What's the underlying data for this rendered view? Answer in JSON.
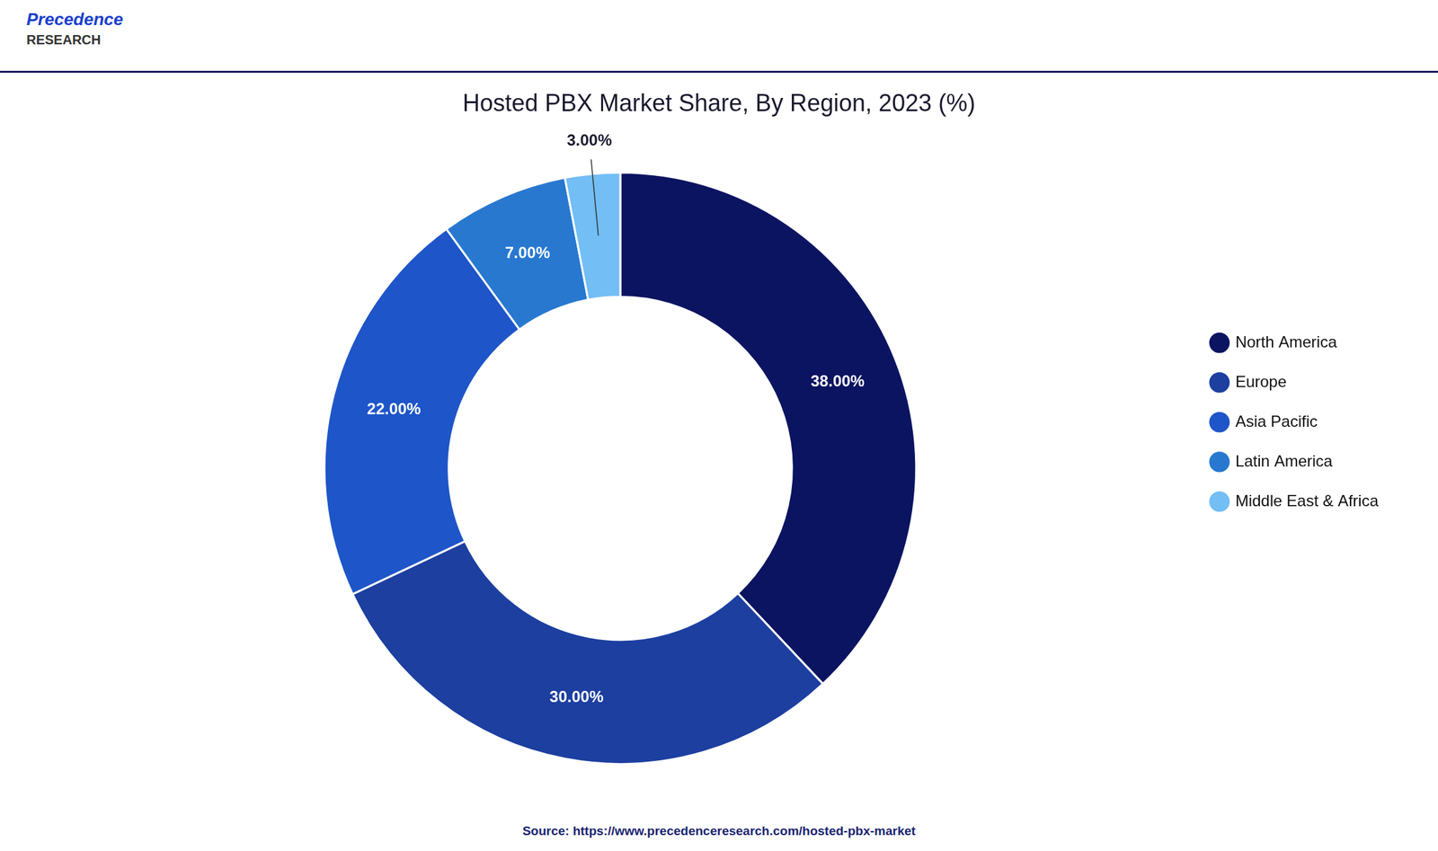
{
  "chart_data": {
    "type": "doughnut",
    "title": "Hosted PBX Market Share, By Region, 2023 (%)",
    "categories": [
      "North America",
      "Europe",
      "Asia Pacific",
      "Latin America",
      "Middle East & Africa"
    ],
    "values": [
      38.0,
      30.0,
      22.0,
      7.0,
      3.0
    ],
    "value_labels": [
      "38.00%",
      "30.00%",
      "22.00%",
      "7.00%",
      "3.00%"
    ],
    "data_labels": true,
    "colors": [
      "#0b1461",
      "#1c3fa0",
      "#1e55c8",
      "#2878d0",
      "#72bef5"
    ],
    "legend": "right",
    "annotations": [
      "Precedence",
      "RESEARCH",
      "Source: https://www.precedenceresearch.com/hosted-pbx-market"
    ]
  }
}
